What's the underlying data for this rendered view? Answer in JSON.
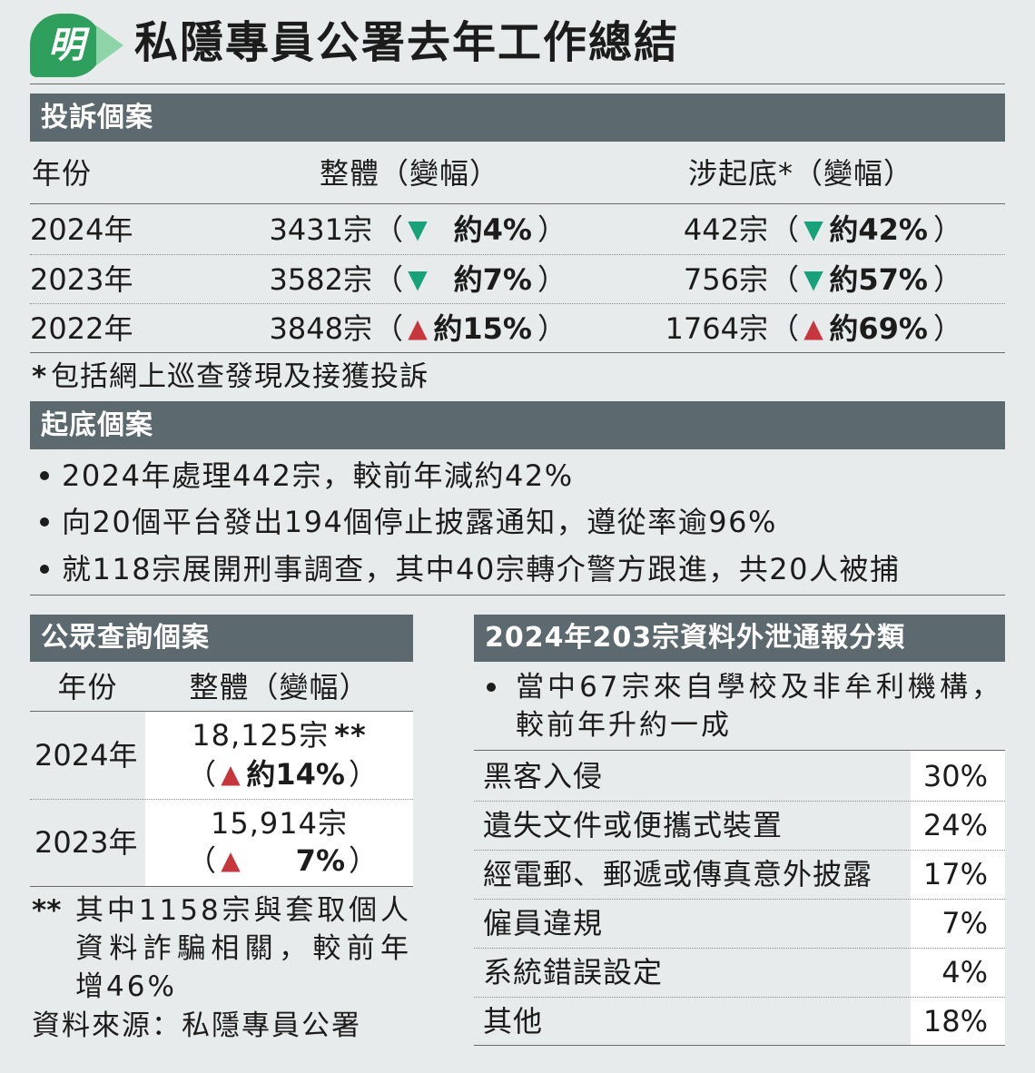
{
  "logo": {
    "text": "明"
  },
  "title": "私隱專員公署去年工作總結",
  "colors": {
    "page": "#e7ebec",
    "bar": "#5c6a6f",
    "down": "#17a27a",
    "up": "#c8363d",
    "logo": "#2f9f5e",
    "logo_tail": "#8fd3a8",
    "cell": "#ffffff"
  },
  "punct": {
    "open": "（",
    "close": "）"
  },
  "complaints": {
    "heading": "投訴個案",
    "columns": {
      "year": "年份",
      "overall": "整體（變幅）",
      "doxxing": "涉起底*（變幅）"
    },
    "rows": [
      {
        "year": "2024年",
        "overall": {
          "count": "3431宗",
          "trend": "▼",
          "change": "約4%"
        },
        "doxxing": {
          "count": "442宗",
          "trend": "▼",
          "change": "約42%"
        }
      },
      {
        "year": "2023年",
        "overall": {
          "count": "3582宗",
          "trend": "▼",
          "change": "約7%"
        },
        "doxxing": {
          "count": "756宗",
          "trend": "▼",
          "change": "約57%"
        }
      },
      {
        "year": "2022年",
        "overall": {
          "count": "3848宗",
          "trend": "▲",
          "change": "約15%"
        },
        "doxxing": {
          "count": "1764宗",
          "trend": "▲",
          "change": "約69%"
        }
      }
    ],
    "footnote": {
      "mark": "*",
      "text": "包括網上巡查發現及接獲投訴"
    }
  },
  "doxxing_cases": {
    "heading": "起底個案",
    "bullets": [
      "2024年處理442宗，較前年減約42%",
      "向20個平台發出194個停止披露通知，遵從率逾96%",
      "就118宗展開刑事調查，其中40宗轉介警方跟進，共20人被捕"
    ]
  },
  "enquiries": {
    "heading": "公眾查詢個案",
    "columns": {
      "year": "年份",
      "overall": "整體（變幅）"
    },
    "rows": [
      {
        "year": "2024年",
        "count": "18,125宗",
        "mark": "**",
        "trend": "▲",
        "change": "約14%"
      },
      {
        "year": "2023年",
        "count": "15,914宗",
        "trend": "▲",
        "change": "7%"
      }
    ],
    "footnote": {
      "mark": "**",
      "text": "其中1158宗與套取個人資料詐騙相關，較前年增46%"
    },
    "source": "資料來源：私隱專員公署"
  },
  "breaches": {
    "heading": "2024年203宗資料外泄通報分類",
    "note": "當中67宗來自學校及非牟利機構，較前年升約一成",
    "rows": [
      {
        "category": "黑客入侵",
        "share": "30%"
      },
      {
        "category": "遺失文件或便攜式裝置",
        "share": "24%"
      },
      {
        "category": "經電郵、郵遞或傳真意外披露",
        "share": "17%"
      },
      {
        "category": "僱員違規",
        "share": "7%"
      },
      {
        "category": "系統錯誤設定",
        "share": "4%"
      },
      {
        "category": "其他",
        "share": "18%"
      }
    ]
  }
}
